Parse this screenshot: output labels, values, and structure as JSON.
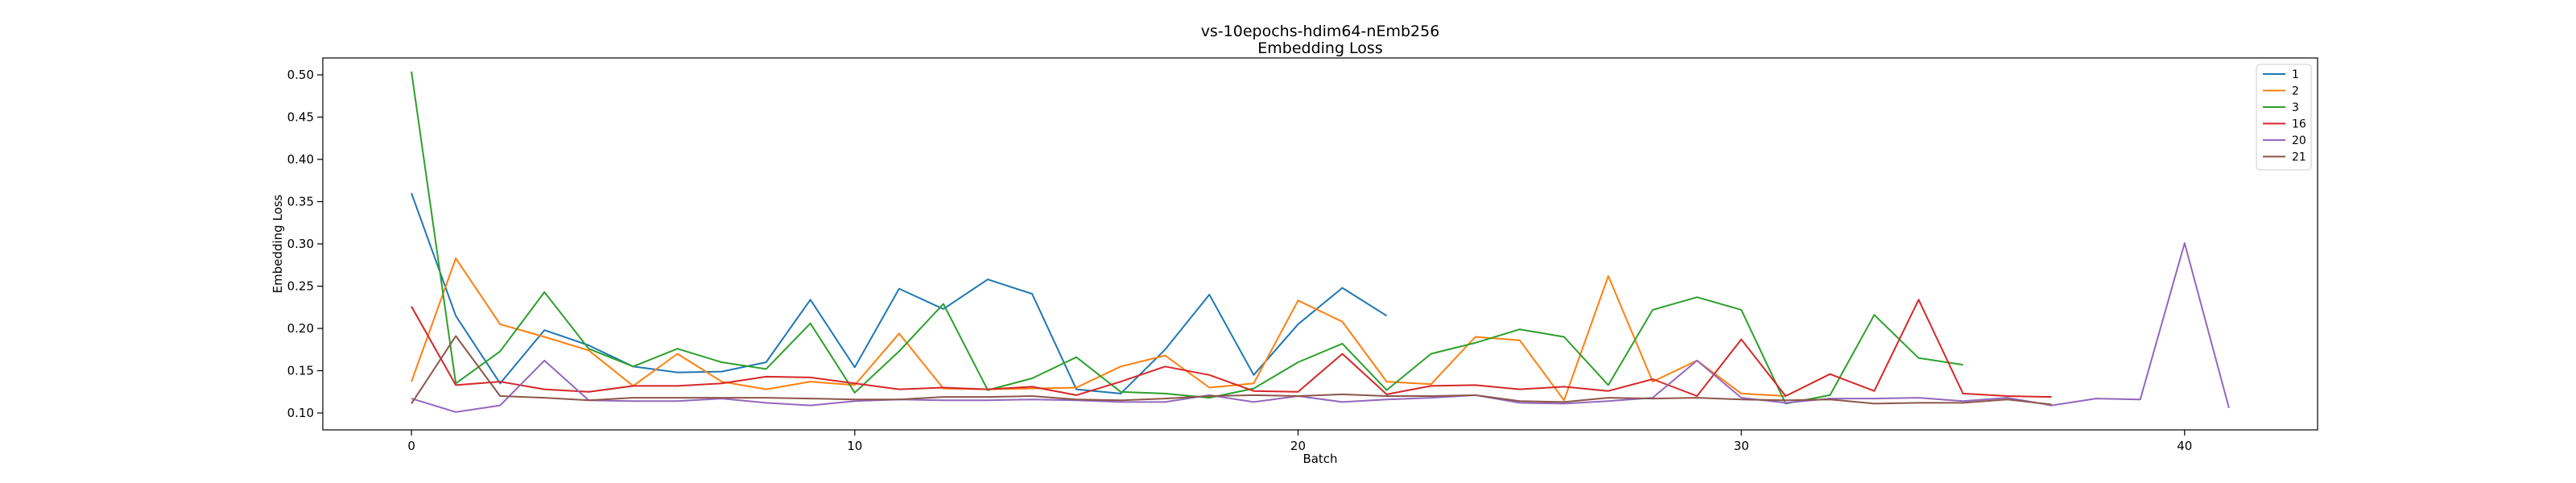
{
  "chart_data": {
    "type": "line",
    "title": "vs-10epochs-hdim64-nEmb256",
    "subtitle": "Embedding Loss",
    "xlabel": "Batch",
    "ylabel": "Embedding Loss",
    "xlim": [
      -2,
      43
    ],
    "ylim": [
      0.08,
      0.52
    ],
    "xticks": [
      0,
      10,
      20,
      30,
      40
    ],
    "yticks": [
      0.1,
      0.15,
      0.2,
      0.25,
      0.3,
      0.35,
      0.4,
      0.45,
      0.5
    ],
    "grid": false,
    "legend": "top-right",
    "series": [
      {
        "name": "1",
        "color": "#1f77b4",
        "values": [
          0.36,
          0.215,
          0.135,
          0.198,
          0.18,
          0.155,
          0.148,
          0.149,
          0.16,
          0.234,
          0.154,
          0.247,
          0.223,
          0.258,
          0.241,
          0.128,
          0.123,
          0.175,
          0.24,
          0.145,
          0.205,
          0.248,
          0.215
        ]
      },
      {
        "name": "2",
        "color": "#ff7f0e",
        "values": [
          0.137,
          0.283,
          0.205,
          0.19,
          0.174,
          0.132,
          0.17,
          0.137,
          0.128,
          0.137,
          0.133,
          0.194,
          0.129,
          0.128,
          0.129,
          0.13,
          0.155,
          0.168,
          0.13,
          0.135,
          0.233,
          0.208,
          0.137,
          0.134,
          0.19,
          0.186,
          0.115,
          0.262,
          0.137,
          0.162,
          0.123,
          0.12
        ]
      },
      {
        "name": "3",
        "color": "#2ca02c",
        "values": [
          0.504,
          0.135,
          0.173,
          0.243,
          0.176,
          0.155,
          0.176,
          0.16,
          0.152,
          0.206,
          0.124,
          0.173,
          0.229,
          0.127,
          0.141,
          0.166,
          0.125,
          0.123,
          0.118,
          0.129,
          0.16,
          0.182,
          0.127,
          0.17,
          0.183,
          0.199,
          0.19,
          0.133,
          0.222,
          0.237,
          0.222,
          0.111,
          0.121,
          0.216,
          0.165,
          0.157
        ]
      },
      {
        "name": "16",
        "color": "#d62728",
        "values": [
          0.226,
          0.133,
          0.137,
          0.128,
          0.125,
          0.132,
          0.132,
          0.135,
          0.143,
          0.142,
          0.135,
          0.128,
          0.13,
          0.128,
          0.131,
          0.121,
          0.137,
          0.155,
          0.145,
          0.126,
          0.125,
          0.17,
          0.122,
          0.132,
          0.133,
          0.128,
          0.131,
          0.126,
          0.14,
          0.12,
          0.187,
          0.12,
          0.146,
          0.126,
          0.234,
          0.123,
          0.12,
          0.119
        ]
      },
      {
        "name": "20",
        "color": "#9467bd",
        "values": [
          0.117,
          0.101,
          0.109,
          0.162,
          0.115,
          0.114,
          0.114,
          0.117,
          0.112,
          0.109,
          0.114,
          0.116,
          0.115,
          0.115,
          0.116,
          0.115,
          0.113,
          0.113,
          0.121,
          0.113,
          0.12,
          0.113,
          0.116,
          0.118,
          0.121,
          0.112,
          0.111,
          0.114,
          0.118,
          0.162,
          0.118,
          0.112,
          0.117,
          0.117,
          0.118,
          0.114,
          0.118,
          0.109,
          0.117,
          0.116,
          0.301,
          0.106
        ]
      },
      {
        "name": "21",
        "color": "#8c564b",
        "values": [
          0.111,
          0.191,
          0.12,
          0.118,
          0.115,
          0.118,
          0.118,
          0.118,
          0.118,
          0.117,
          0.116,
          0.116,
          0.119,
          0.119,
          0.12,
          0.116,
          0.115,
          0.117,
          0.12,
          0.121,
          0.12,
          0.122,
          0.12,
          0.12,
          0.121,
          0.114,
          0.113,
          0.118,
          0.117,
          0.118,
          0.116,
          0.115,
          0.116,
          0.111,
          0.112,
          0.112,
          0.116,
          0.11
        ]
      }
    ]
  }
}
